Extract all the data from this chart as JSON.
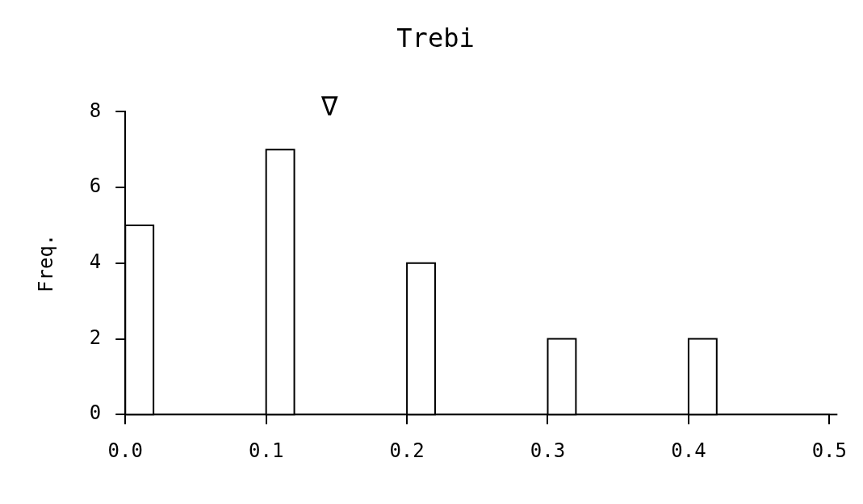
{
  "chart_data": {
    "type": "histogram",
    "title": "Trebi",
    "ylabel": "Freq.",
    "bins": [
      0.0,
      0.02,
      0.1,
      0.12,
      0.2,
      0.22,
      0.3,
      0.32,
      0.4,
      0.42
    ],
    "values": [
      5,
      0,
      7,
      0,
      4,
      0,
      2,
      0,
      2
    ],
    "color": "#ffffff",
    "xlim": [
      0.0,
      0.5
    ],
    "xticks": [
      {
        "value": 0.0,
        "label": "0.0"
      },
      0.1,
      0.2,
      0.3,
      0.4,
      0.5
    ],
    "ylim": [
      0,
      8
    ],
    "yticks": [
      0,
      2,
      4,
      6,
      8
    ],
    "annotations": [
      "∇"
    ],
    "grid": false,
    "legend": false
  }
}
